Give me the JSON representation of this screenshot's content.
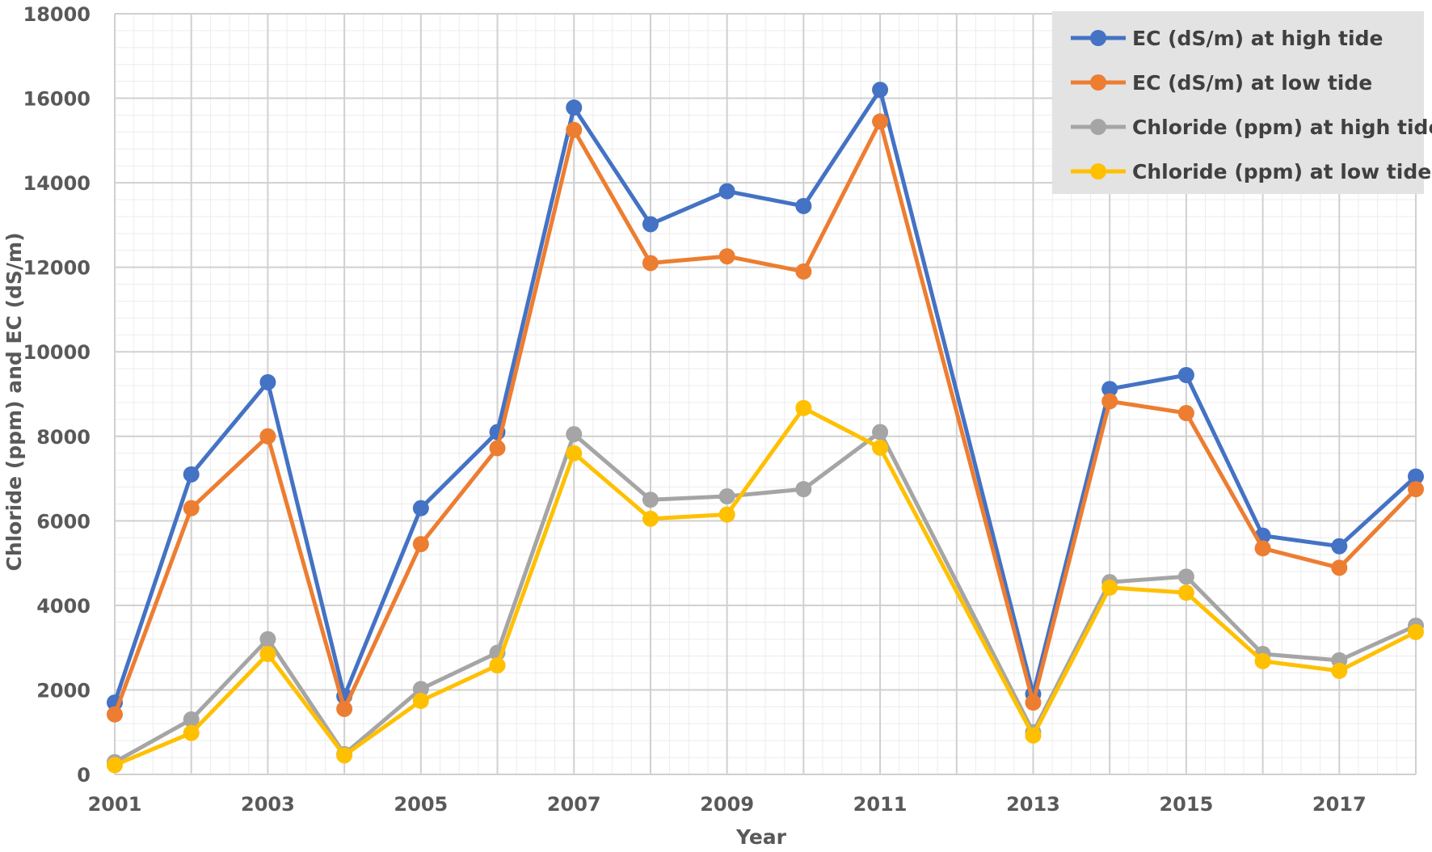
{
  "chart_data": {
    "type": "line",
    "xlabel": "Year",
    "ylabel": "Chloride (ppm) and EC (dS/m)",
    "xlim": [
      2001,
      2018
    ],
    "ylim": [
      0,
      18000
    ],
    "x_ticks": [
      "2001",
      "2003",
      "2005",
      "2007",
      "2009",
      "2011",
      "2013",
      "2015",
      "2017"
    ],
    "y_ticks": [
      "0",
      "2000",
      "4000",
      "6000",
      "8000",
      "10000",
      "12000",
      "14000",
      "16000",
      "18000"
    ],
    "grid": true,
    "legend_position": "top-right",
    "x": [
      2001,
      2002,
      2003,
      2004,
      2005,
      2006,
      2007,
      2008,
      2009,
      2010,
      2011,
      2013,
      2014,
      2015,
      2016,
      2017,
      2018
    ],
    "series": [
      {
        "name": "EC (dS/m) at high tide",
        "color": "#4472C4",
        "values": [
          1700,
          7100,
          9280,
          1850,
          6300,
          8100,
          15780,
          13020,
          13800,
          13450,
          16200,
          1900,
          9120,
          9450,
          5650,
          5400,
          7050
        ]
      },
      {
        "name": "EC (dS/m) at low tide",
        "color": "#ED7D31",
        "values": [
          1420,
          6300,
          8000,
          1550,
          5450,
          7720,
          15250,
          12100,
          12260,
          11900,
          15450,
          1700,
          8830,
          8550,
          5350,
          4890,
          6750
        ]
      },
      {
        "name": "Chloride (ppm) at high tide",
        "color": "#A5A5A5",
        "values": [
          290,
          1300,
          3200,
          480,
          2020,
          2880,
          8050,
          6500,
          6580,
          6750,
          8100,
          1000,
          4550,
          4680,
          2850,
          2700,
          3520
        ]
      },
      {
        "name": "Chloride (ppm) at low tide",
        "color": "#FFC000",
        "values": [
          220,
          980,
          2850,
          450,
          1740,
          2580,
          7600,
          6050,
          6150,
          8670,
          7730,
          920,
          4420,
          4300,
          2680,
          2450,
          3370
        ]
      }
    ]
  }
}
